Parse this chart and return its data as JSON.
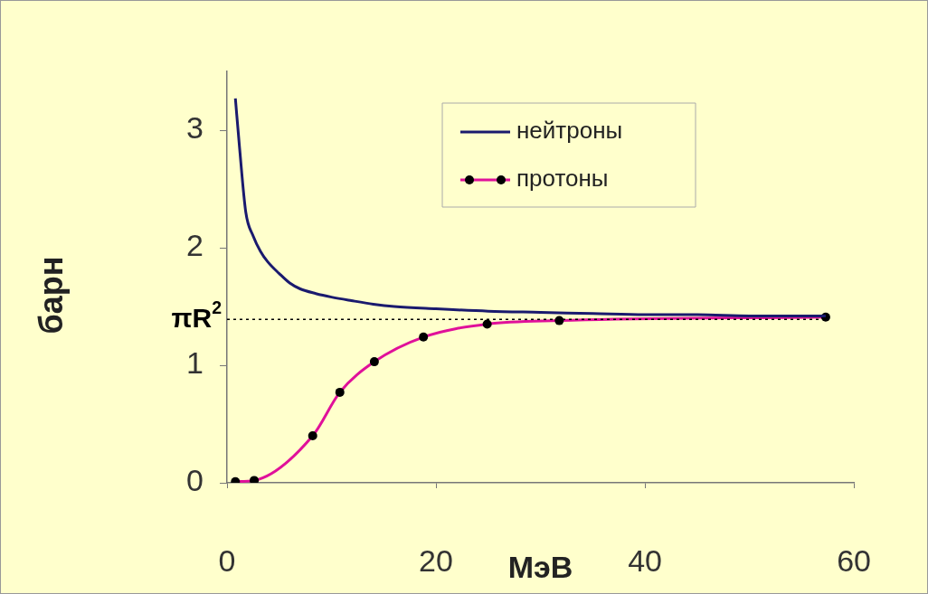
{
  "chart_data": {
    "type": "line",
    "xlabel": "МэВ",
    "ylabel": "барн",
    "xlim": [
      0,
      60
    ],
    "xticks": [
      0,
      20,
      40,
      60
    ],
    "ylim": [
      0,
      3.5
    ],
    "yticks": [
      0,
      1,
      2,
      3
    ],
    "grid": false,
    "legend": "top right",
    "line_style": "solid",
    "series": [
      {
        "name": "нейтроны",
        "color": "#1a1a6e",
        "marker": "none",
        "x": [
          0.8,
          1.2,
          1.8,
          2.5,
          3.2,
          3.9,
          5,
          6,
          7,
          8.5,
          10,
          11.9,
          14,
          16,
          20,
          25,
          30,
          35,
          40,
          45,
          50,
          57.3
        ],
        "values": [
          3.27,
          2.85,
          2.3,
          2.1,
          1.97,
          1.88,
          1.78,
          1.7,
          1.65,
          1.61,
          1.58,
          1.55,
          1.52,
          1.5,
          1.48,
          1.46,
          1.45,
          1.44,
          1.43,
          1.43,
          1.42,
          1.42
        ]
      },
      {
        "name": "протоны",
        "color": "#e0109a",
        "marker": "circle",
        "x": [
          0.8,
          2.6,
          8.2,
          10.8,
          14.1,
          18.8,
          24.9,
          31.8,
          57.3
        ],
        "values": [
          0.01,
          0.02,
          0.4,
          0.77,
          1.03,
          1.24,
          1.35,
          1.38,
          1.41
        ]
      }
    ],
    "ref_lines": [
      {
        "axis": "y",
        "value": 1.39,
        "label": "πR$^{2}$",
        "line_style": "dotted",
        "color": "#000000"
      }
    ]
  }
}
